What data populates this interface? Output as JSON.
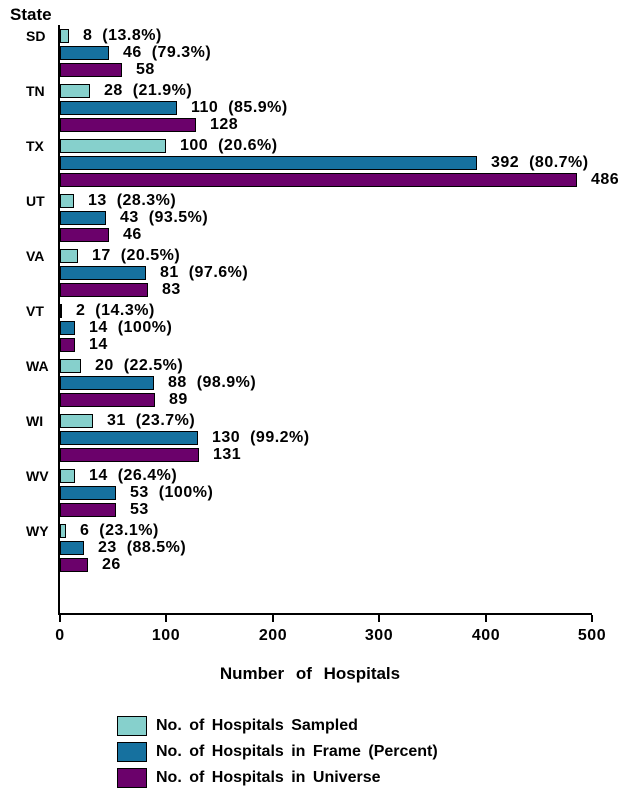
{
  "title": "State",
  "xlabel": "Number of Hospitals",
  "colors": {
    "sampled": "#86D0CC",
    "frame": "#16719F",
    "universe": "#6B016B",
    "axis": "#000000",
    "background": "#FFFFFF"
  },
  "x_ticks": [
    "0",
    "100",
    "200",
    "300",
    "400",
    "500"
  ],
  "legend": [
    {
      "key": "sampled",
      "label": "No. of Hospitals Sampled"
    },
    {
      "key": "frame",
      "label": "No. of Hospitals in Frame (Percent)"
    },
    {
      "key": "universe",
      "label": "No. of Hospitals in Universe"
    }
  ],
  "chart_data": {
    "type": "bar",
    "orientation": "horizontal",
    "title": "State",
    "xlabel": "Number of Hospitals",
    "xlim": [
      0,
      500
    ],
    "grid": false,
    "legend_position": "bottom",
    "categories": [
      "SD",
      "TN",
      "TX",
      "UT",
      "VA",
      "VT",
      "WA",
      "WI",
      "WV",
      "WY"
    ],
    "series": [
      {
        "name": "No. of Hospitals Sampled",
        "key": "sampled",
        "color": "#86D0CC",
        "values": [
          8,
          28,
          100,
          13,
          17,
          2,
          20,
          31,
          14,
          6
        ],
        "percent_of_universe": [
          "13.8%",
          "21.9%",
          "20.6%",
          "28.3%",
          "20.5%",
          "14.3%",
          "22.5%",
          "23.7%",
          "26.4%",
          "23.1%"
        ]
      },
      {
        "name": "No. of Hospitals in Frame (Percent)",
        "key": "frame",
        "color": "#16719F",
        "values": [
          46,
          110,
          392,
          43,
          81,
          14,
          88,
          130,
          53,
          23
        ],
        "percent_of_universe": [
          "79.3%",
          "85.9%",
          "80.7%",
          "93.5%",
          "97.6%",
          "100%",
          "98.9%",
          "99.2%",
          "100%",
          "88.5%"
        ]
      },
      {
        "name": "No. of Hospitals in Universe",
        "key": "universe",
        "color": "#6B016B",
        "values": [
          58,
          128,
          486,
          46,
          83,
          14,
          89,
          131,
          53,
          26
        ]
      }
    ],
    "bar_labels": [
      [
        "8  (13.8%)",
        "46  (79.3%)",
        "58"
      ],
      [
        "28  (21.9%)",
        "110  (85.9%)",
        "128"
      ],
      [
        "100  (20.6%)",
        "392  (80.7%)",
        "486"
      ],
      [
        "13  (28.3%)",
        "43  (93.5%)",
        "46"
      ],
      [
        "17  (20.5%)",
        "81  (97.6%)",
        "83"
      ],
      [
        "2  (14.3%)",
        "14  (100%)",
        "14"
      ],
      [
        "20  (22.5%)",
        "88  (98.9%)",
        "89"
      ],
      [
        "31  (23.7%)",
        "130  (99.2%)",
        "131"
      ],
      [
        "14  (26.4%)",
        "53  (100%)",
        "53"
      ],
      [
        "6  (23.1%)",
        "23  (88.5%)",
        "26"
      ]
    ]
  }
}
